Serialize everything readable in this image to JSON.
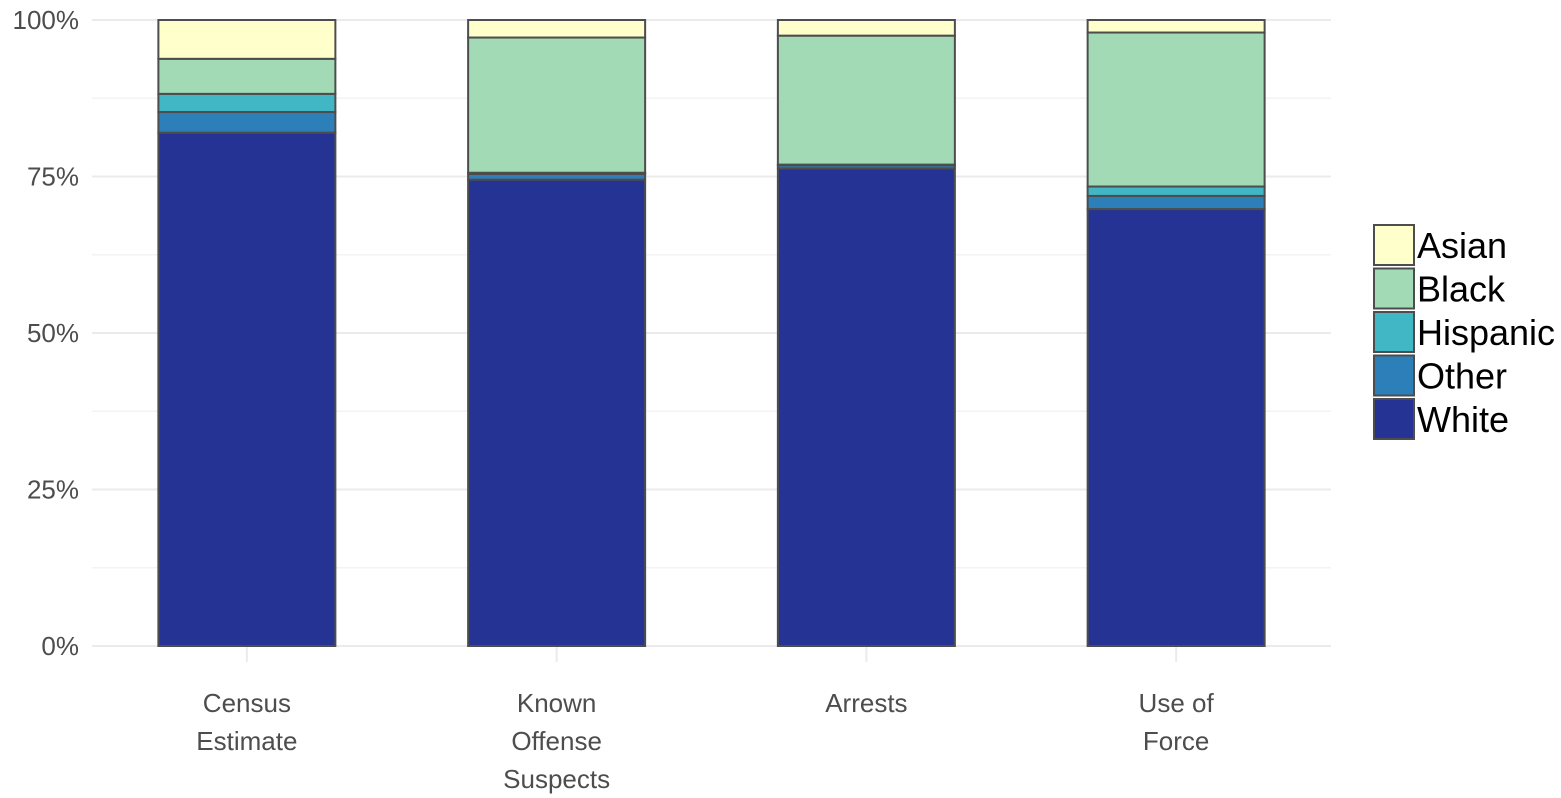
{
  "chart_data": {
    "type": "bar",
    "stacked": true,
    "percent": true,
    "categories": [
      [
        "Census",
        "Estimate"
      ],
      [
        "Known",
        "Offense",
        "Suspects"
      ],
      [
        "Arrests"
      ],
      [
        "Use of",
        "Force"
      ]
    ],
    "series": [
      {
        "name": "White",
        "color": "#253494",
        "values": [
          82.0,
          74.5,
          76.3,
          69.8
        ]
      },
      {
        "name": "Other",
        "color": "#2c7fb8",
        "values": [
          3.3,
          0.9,
          0.5,
          2.1
        ]
      },
      {
        "name": "Hispanic",
        "color": "#41b6c4",
        "values": [
          2.9,
          0.2,
          0.1,
          1.5
        ]
      },
      {
        "name": "Black",
        "color": "#a1dab4",
        "values": [
          5.6,
          21.6,
          20.6,
          24.6
        ]
      },
      {
        "name": "Asian",
        "color": "#ffffcc",
        "values": [
          6.2,
          2.8,
          2.5,
          2.0
        ]
      }
    ],
    "legend_order": [
      "Asian",
      "Black",
      "Hispanic",
      "Other",
      "White"
    ],
    "legend_position": "right",
    "yticks": [
      "0%",
      "25%",
      "50%",
      "75%",
      "100%"
    ],
    "ylim": [
      0,
      100
    ],
    "grid": true,
    "title": "",
    "xlabel": "",
    "ylabel": ""
  }
}
